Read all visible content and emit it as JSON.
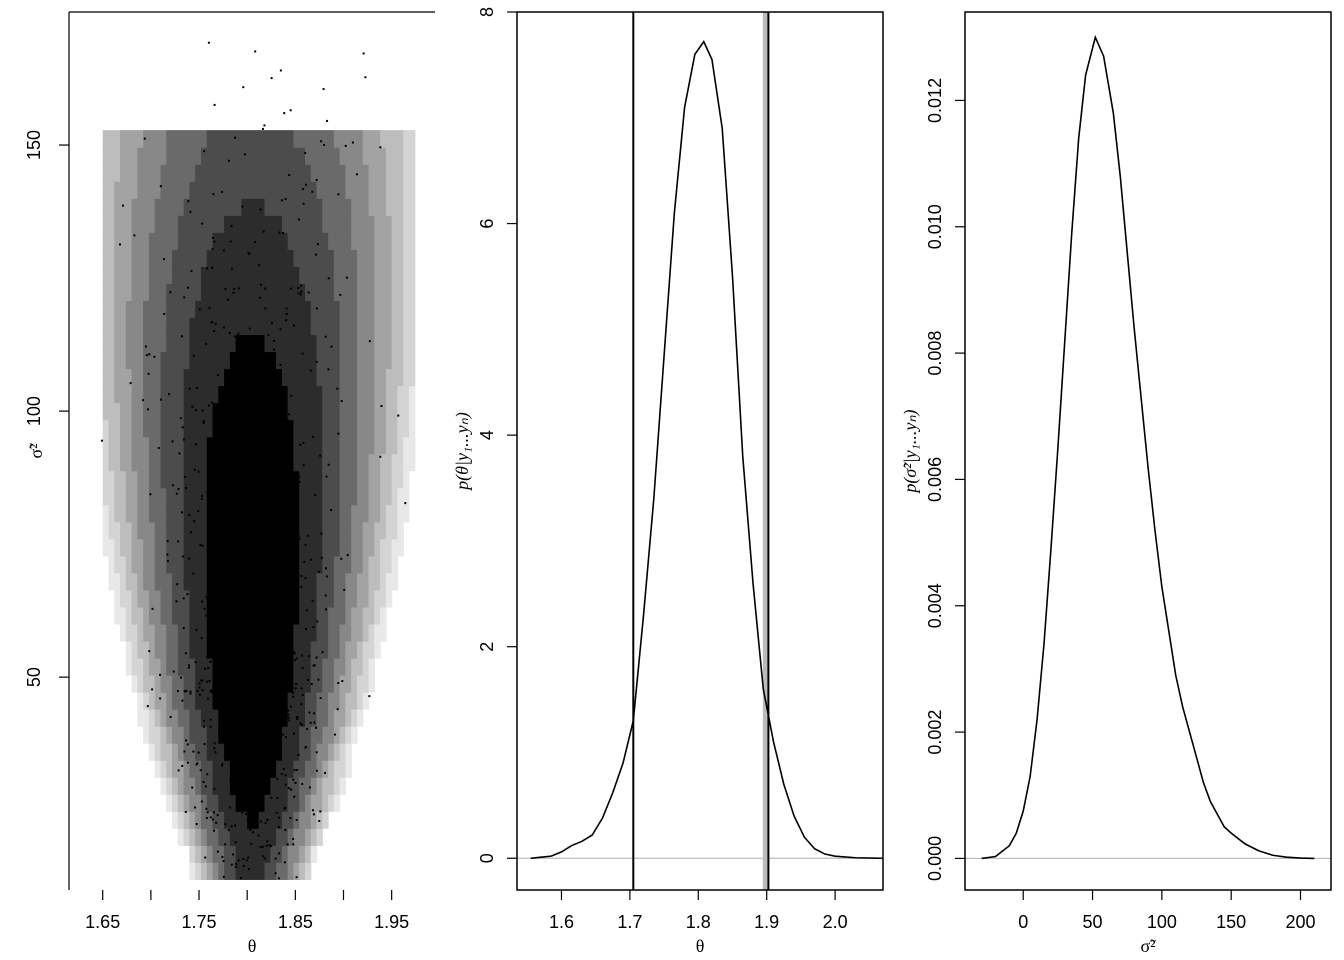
{
  "chart_data": [
    {
      "type": "heatmap",
      "xlabel": "θ",
      "ylabel": "σ̃²",
      "xlim": [
        1.615,
        1.995
      ],
      "ylim": [
        10,
        175
      ],
      "x_ticks": [
        1.65,
        1.75,
        1.85,
        1.95
      ],
      "y_ticks": [
        50,
        100,
        150
      ],
      "x_tick_labels": [
        "1.65",
        "1.75",
        "1.85",
        "1.95"
      ],
      "y_tick_labels": [
        "50",
        "100",
        "150"
      ],
      "grid": false,
      "mode": {
        "theta": 1.805,
        "sigma2": 55
      },
      "spread": {
        "theta": 0.045,
        "sigma2_low": 33,
        "sigma2_high": 60
      },
      "colors": [
        "#e8e8e8",
        "#d4d4d4",
        "#bdbdbd",
        "#a3a3a3",
        "#888888",
        "#6a6a6a",
        "#4c4c4c",
        "#2c2c2c",
        "#000000"
      ]
    },
    {
      "type": "line",
      "xlabel": "θ",
      "ylabel": "p(θ|y₁...yₙ)",
      "xlim": [
        1.535,
        2.07
      ],
      "ylim": [
        -0.3,
        8
      ],
      "x_ticks": [
        1.6,
        1.7,
        1.8,
        1.9,
        2.0
      ],
      "y_ticks": [
        0,
        2,
        4,
        6,
        8
      ],
      "x_tick_labels": [
        "1.6",
        "1.7",
        "1.8",
        "1.9",
        "2.0"
      ],
      "y_tick_labels": [
        "0",
        "2",
        "4",
        "6",
        "8"
      ],
      "x": [
        1.555,
        1.57,
        1.585,
        1.6,
        1.615,
        1.63,
        1.645,
        1.66,
        1.675,
        1.69,
        1.705,
        1.72,
        1.735,
        1.75,
        1.765,
        1.78,
        1.795,
        1.808,
        1.82,
        1.835,
        1.85,
        1.865,
        1.88,
        1.895,
        1.91,
        1.925,
        1.94,
        1.955,
        1.97,
        1.985,
        2.0,
        2.03,
        2.07
      ],
      "y": [
        0,
        0.01,
        0.02,
        0.06,
        0.12,
        0.16,
        0.22,
        0.38,
        0.62,
        0.9,
        1.3,
        2.3,
        3.4,
        4.75,
        6.1,
        7.1,
        7.6,
        7.72,
        7.55,
        6.9,
        5.5,
        3.8,
        2.6,
        1.6,
        1.1,
        0.7,
        0.4,
        0.2,
        0.09,
        0.04,
        0.02,
        0.005,
        0
      ],
      "vlines": [
        1.705,
        1.9025
      ],
      "vline_colors": [
        "#000000",
        "#000000"
      ],
      "gray_vline": 1.898,
      "gray_vline_color": "#bbbbbb",
      "hline": 0,
      "hline_color": "#bbbbbb"
    },
    {
      "type": "line",
      "xlabel": "σ̃²",
      "ylabel": "p(σ̃²|y₁...yₙ)",
      "xlim": [
        -42,
        222
      ],
      "ylim": [
        -0.0005,
        0.0134
      ],
      "x_ticks": [
        0,
        50,
        100,
        150,
        200
      ],
      "y_ticks": [
        0.0,
        0.002,
        0.004,
        0.006,
        0.008,
        0.01,
        0.012
      ],
      "x_tick_labels": [
        "0",
        "50",
        "100",
        "150",
        "200"
      ],
      "y_tick_labels": [
        "0.000",
        "0.002",
        "0.004",
        "0.006",
        "0.008",
        "0.010",
        "0.012"
      ],
      "x": [
        -30,
        -20,
        -10,
        -5,
        0,
        5,
        10,
        15,
        20,
        25,
        30,
        35,
        40,
        45,
        52,
        58,
        65,
        70,
        75,
        80,
        85,
        90,
        95,
        100,
        105,
        110,
        115,
        120,
        125,
        130,
        135,
        140,
        145,
        150,
        160,
        170,
        180,
        190,
        200,
        210
      ],
      "y": [
        0,
        3e-05,
        0.0002,
        0.0004,
        0.00075,
        0.0013,
        0.0022,
        0.0034,
        0.0049,
        0.0065,
        0.0082,
        0.0099,
        0.0114,
        0.0124,
        0.013,
        0.0127,
        0.0118,
        0.0108,
        0.0096,
        0.0084,
        0.0073,
        0.0062,
        0.0052,
        0.0043,
        0.0036,
        0.0029,
        0.0024,
        0.002,
        0.0016,
        0.0012,
        0.0009,
        0.0007,
        0.0005,
        0.0004,
        0.00023,
        0.00012,
        5e-05,
        2e-05,
        5e-06,
        0
      ],
      "hline": 0,
      "hline_color": "#bbbbbb"
    }
  ]
}
